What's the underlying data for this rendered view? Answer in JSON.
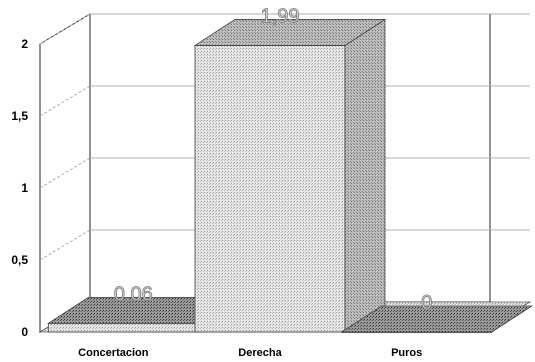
{
  "chart_data": {
    "type": "bar",
    "categories": [
      "Concertacion",
      "Derecha",
      "Puros"
    ],
    "values": [
      0.06,
      1.99,
      0
    ],
    "data_labels": [
      "0,06",
      "1,99",
      "0"
    ],
    "yticks": [
      "0",
      "0,5",
      "1",
      "1,5",
      "2"
    ],
    "ylim": [
      0,
      2
    ],
    "grid": true,
    "legend": "none",
    "bar_color": "#c8c8c8",
    "gridline_color": "#b0b0b0"
  }
}
